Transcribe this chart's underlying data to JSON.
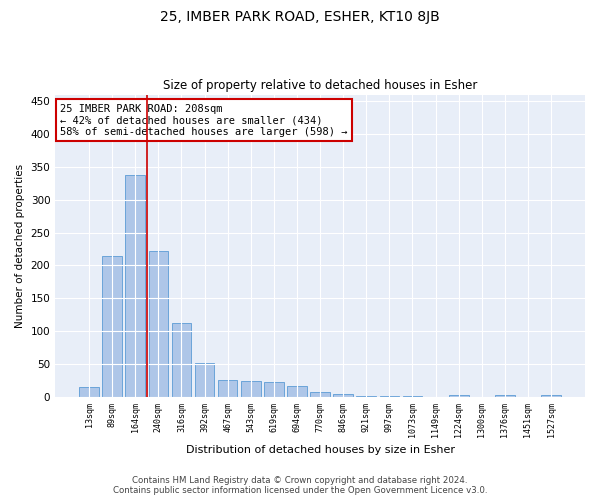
{
  "title_line1": "25, IMBER PARK ROAD, ESHER, KT10 8JB",
  "title_line2": "Size of property relative to detached houses in Esher",
  "xlabel": "Distribution of detached houses by size in Esher",
  "ylabel": "Number of detached properties",
  "categories": [
    "13sqm",
    "89sqm",
    "164sqm",
    "240sqm",
    "316sqm",
    "392sqm",
    "467sqm",
    "543sqm",
    "619sqm",
    "694sqm",
    "770sqm",
    "846sqm",
    "921sqm",
    "997sqm",
    "1073sqm",
    "1149sqm",
    "1224sqm",
    "1300sqm",
    "1376sqm",
    "1451sqm",
    "1527sqm"
  ],
  "values": [
    15,
    215,
    338,
    222,
    113,
    51,
    25,
    24,
    22,
    16,
    8,
    5,
    1,
    1,
    1,
    0,
    3,
    0,
    2,
    0,
    2
  ],
  "bar_color": "#aec6e8",
  "bar_edge_color": "#5b9bd5",
  "background_color": "#e8eef8",
  "grid_color": "#ffffff",
  "ylim": [
    0,
    460
  ],
  "yticks": [
    0,
    50,
    100,
    150,
    200,
    250,
    300,
    350,
    400,
    450
  ],
  "annotation_text": "25 IMBER PARK ROAD: 208sqm\n← 42% of detached houses are smaller (434)\n58% of semi-detached houses are larger (598) →",
  "vline_position": 2.5,
  "vline_color": "#cc0000",
  "footer_line1": "Contains HM Land Registry data © Crown copyright and database right 2024.",
  "footer_line2": "Contains public sector information licensed under the Open Government Licence v3.0."
}
